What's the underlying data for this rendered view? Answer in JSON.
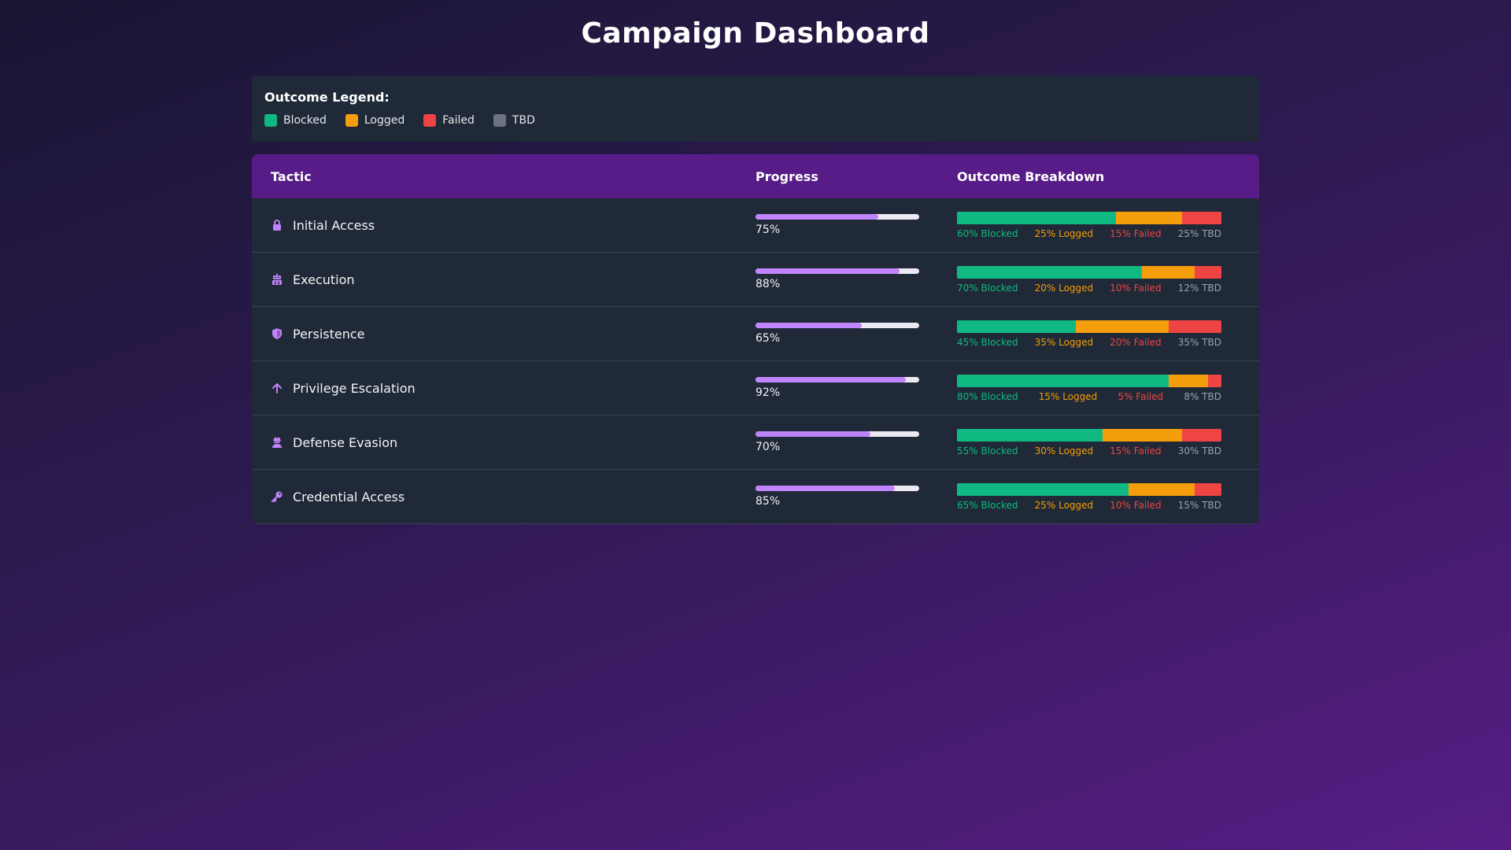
{
  "page": {
    "title": "Campaign Dashboard"
  },
  "legend": {
    "title": "Outcome Legend:",
    "items": [
      {
        "label": "Blocked",
        "color": "#10b981"
      },
      {
        "label": "Logged",
        "color": "#f59e0b"
      },
      {
        "label": "Failed",
        "color": "#ef4444"
      },
      {
        "label": "TBD",
        "color": "#6b7280"
      }
    ]
  },
  "colors": {
    "accent": "#c084fc",
    "header_bg": "#571c87",
    "card_bg": "#1f2937",
    "blocked": "#10b981",
    "logged": "#f59e0b",
    "failed": "#ef4444",
    "tbd": "#6b7280"
  },
  "table": {
    "headers": {
      "tactic": "Tactic",
      "progress": "Progress",
      "outcome": "Outcome Breakdown"
    },
    "rows": [
      {
        "icon": "lock-icon",
        "tactic": "Initial Access",
        "progress": 75,
        "progress_text": "75%",
        "blocked": 60,
        "logged": 25,
        "failed": 15,
        "tbd": 25,
        "blocked_label": "60% Blocked",
        "logged_label": "25% Logged",
        "failed_label": "15% Failed",
        "tbd_label": "25% TBD"
      },
      {
        "icon": "robot-icon",
        "tactic": "Execution",
        "progress": 88,
        "progress_text": "88%",
        "blocked": 70,
        "logged": 20,
        "failed": 10,
        "tbd": 12,
        "blocked_label": "70% Blocked",
        "logged_label": "20% Logged",
        "failed_label": "10% Failed",
        "tbd_label": "12% TBD"
      },
      {
        "icon": "shield-icon",
        "tactic": "Persistence",
        "progress": 65,
        "progress_text": "65%",
        "blocked": 45,
        "logged": 35,
        "failed": 20,
        "tbd": 35,
        "blocked_label": "45% Blocked",
        "logged_label": "35% Logged",
        "failed_label": "20% Failed",
        "tbd_label": "35% TBD"
      },
      {
        "icon": "arrow-up-icon",
        "tactic": "Privilege Escalation",
        "progress": 92,
        "progress_text": "92%",
        "blocked": 80,
        "logged": 15,
        "failed": 5,
        "tbd": 8,
        "blocked_label": "80% Blocked",
        "logged_label": "15% Logged",
        "failed_label": "5% Failed",
        "tbd_label": "8% TBD"
      },
      {
        "icon": "user-secret-icon",
        "tactic": "Defense Evasion",
        "progress": 70,
        "progress_text": "70%",
        "blocked": 55,
        "logged": 30,
        "failed": 15,
        "tbd": 30,
        "blocked_label": "55% Blocked",
        "logged_label": "30% Logged",
        "failed_label": "15% Failed",
        "tbd_label": "30% TBD"
      },
      {
        "icon": "key-icon",
        "tactic": "Credential Access",
        "progress": 85,
        "progress_text": "85%",
        "blocked": 65,
        "logged": 25,
        "failed": 10,
        "tbd": 15,
        "blocked_label": "65% Blocked",
        "logged_label": "25% Logged",
        "failed_label": "10% Failed",
        "tbd_label": "15% TBD"
      }
    ]
  }
}
